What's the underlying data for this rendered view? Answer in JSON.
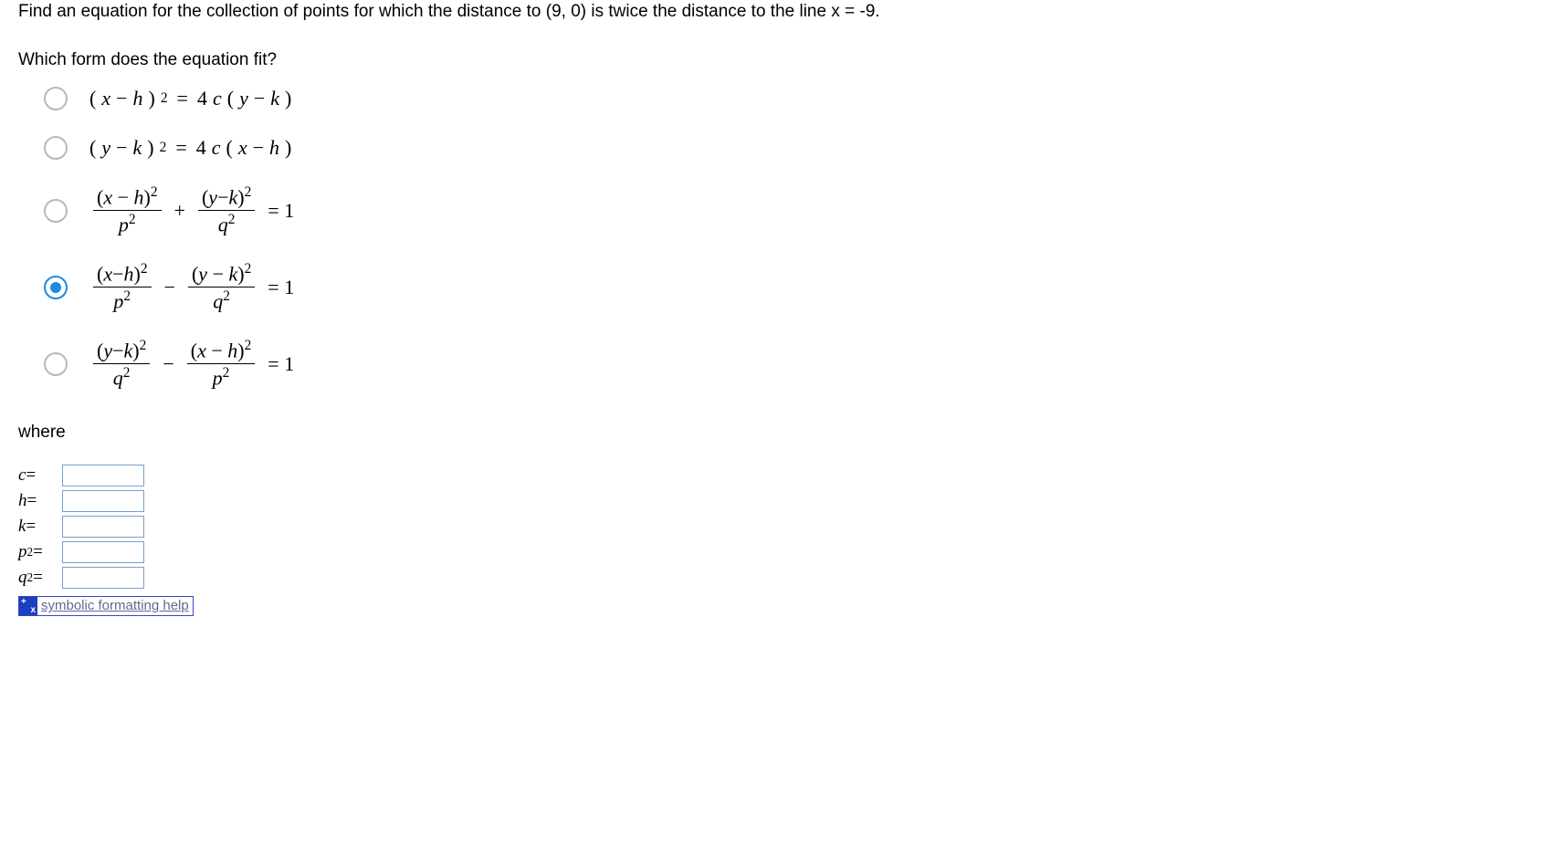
{
  "question": "Find an equation for the collection of points for which the distance to (9, 0) is twice the distance to the line x = -9.",
  "sub_prompt": "Which form does the equation fit?",
  "options": [
    {
      "selected": false,
      "expr": "(x − h)² = 4c(y − k)"
    },
    {
      "selected": false,
      "expr": "(y − k)² = 4c(x − h)"
    },
    {
      "selected": false,
      "expr": "(x − h)²/p² + (y−k)²/q² = 1"
    },
    {
      "selected": true,
      "expr": "(x−h)²/p² − (y − k)²/q² = 1"
    },
    {
      "selected": false,
      "expr": "(y−k)²/q² − (x − h)²/p² = 1"
    }
  ],
  "where_label": "where",
  "inputs": {
    "c": {
      "label": "c =",
      "value": ""
    },
    "h": {
      "label": "h =",
      "value": ""
    },
    "k": {
      "label": "k =",
      "value": ""
    },
    "p2": {
      "label": "p² =",
      "value": ""
    },
    "q2": {
      "label": "q² =",
      "value": ""
    }
  },
  "help_link": "symbolic formatting help",
  "colors": {
    "radio_border": "#b8b8b8",
    "radio_selected": "#1e88e5",
    "input_border": "#7a9ec9",
    "help_border": "#3344cc",
    "help_text": "#646893",
    "help_icon_bg": "#1b3fbf",
    "background": "#ffffff",
    "text": "#000000"
  },
  "typography": {
    "body_font": "Verdana",
    "math_font": "Times New Roman italic",
    "body_size_pt": 14,
    "math_size_pt": 16
  }
}
